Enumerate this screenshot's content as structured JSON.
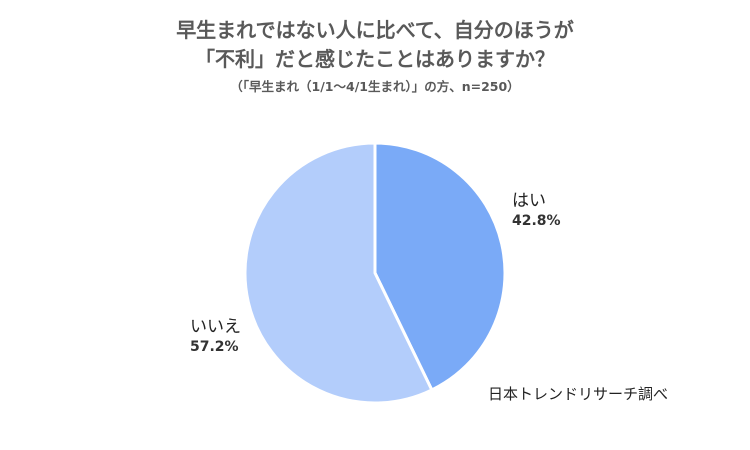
{
  "title_line1": "早生まれではない人に比べて、自分のほうが",
  "title_line2": "「不利」だと感じたことはありますか？",
  "subtitle": "（「早生まれ（1/1～4/1生まれ）」の方、n=250）",
  "source": "日本トレンドリサーチ調べ",
  "chart_data": {
    "type": "pie",
    "title": "早生まれではない人に比べて、自分のほうが「不利」だと感じたことはありますか？",
    "subtitle": "（「早生まれ（1/1～4/1生まれ）」の方、n=250）",
    "slices": [
      {
        "label": "はい",
        "value": 42.8,
        "display": "42.8%",
        "color": "#7aaaf7"
      },
      {
        "label": "いいえ",
        "value": 57.2,
        "display": "57.2%",
        "color": "#b3cdfb"
      }
    ],
    "start_angle": "12 o'clock",
    "direction": "clockwise",
    "slice_border_color": "#ffffff"
  }
}
